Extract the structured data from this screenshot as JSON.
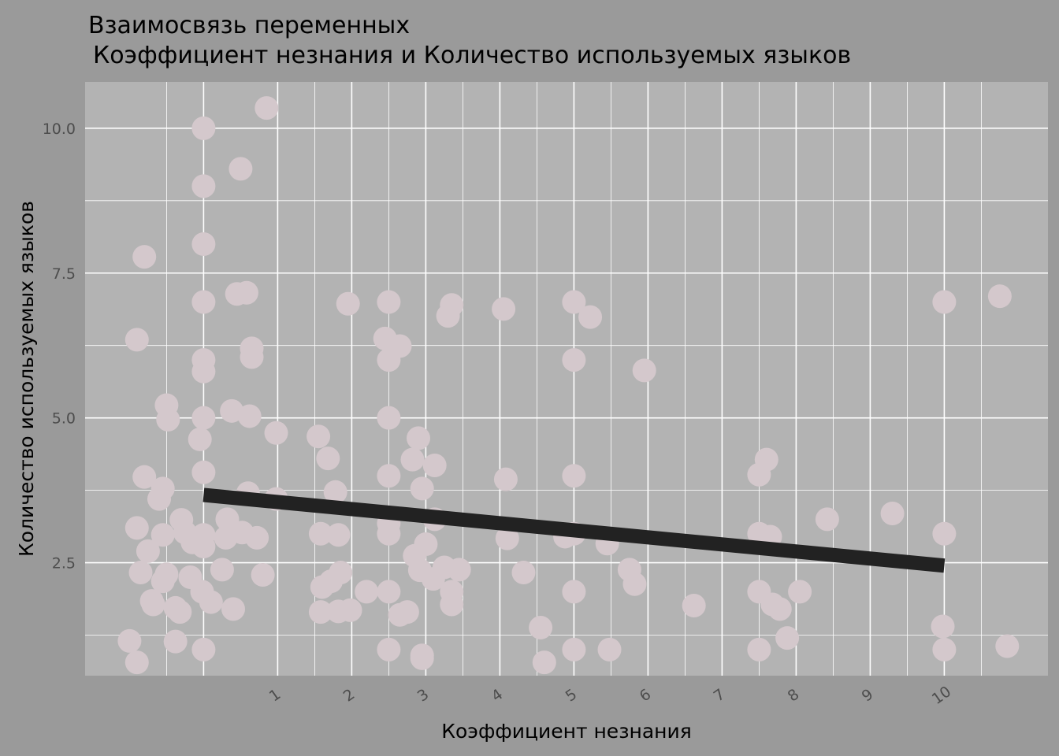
{
  "chart_data": {
    "type": "scatter",
    "title": "Взаимосвязь переменных",
    "subtitle": "Коэффициент незнания и Количество используемых языков",
    "xlabel": "Коэффициент незнания",
    "ylabel": "Количество используемых языков",
    "x_ticks": [
      1,
      2,
      3,
      4,
      5,
      6,
      7,
      8,
      9,
      10
    ],
    "x_tick_labels": [
      "1",
      "2",
      "3",
      "4",
      "5",
      "6",
      "7",
      "8",
      "9",
      "10"
    ],
    "y_ticks": [
      2.5,
      5.0,
      7.5,
      10.0
    ],
    "y_tick_labels": [
      "2.5",
      "5.0",
      "7.5",
      "10.0"
    ],
    "xlim": [
      -1.6,
      11.4
    ],
    "ylim": [
      0.55,
      10.8
    ],
    "grid": true,
    "legend": "none",
    "colors": {
      "background": "#9a9a9a",
      "panel": "#b3b3b3",
      "grid": "#ffffff",
      "point": "#d4c8cc",
      "trend_line": "#222222",
      "text": "#000000",
      "tick_text": "#4d4d4d"
    },
    "series": [
      {
        "type": "scatter",
        "points": [
          [
            -1.0,
            1.15
          ],
          [
            -0.9,
            0.78
          ],
          [
            -0.85,
            2.33
          ],
          [
            -0.9,
            3.1
          ],
          [
            -0.8,
            3.98
          ],
          [
            -0.75,
            2.7
          ],
          [
            -0.9,
            6.35
          ],
          [
            -0.8,
            7.78
          ],
          [
            -0.7,
            1.84
          ],
          [
            -0.68,
            1.78
          ],
          [
            -0.6,
            3.6
          ],
          [
            -0.55,
            3.78
          ],
          [
            -0.55,
            2.98
          ],
          [
            -0.5,
            2.3
          ],
          [
            -0.55,
            2.18
          ],
          [
            -0.5,
            5.22
          ],
          [
            -0.48,
            4.97
          ],
          [
            -0.38,
            1.72
          ],
          [
            -0.38,
            1.14
          ],
          [
            -0.3,
            3.24
          ],
          [
            -0.32,
            1.65
          ],
          [
            -0.25,
            3.02
          ],
          [
            -0.18,
            2.25
          ],
          [
            -0.15,
            2.85
          ],
          [
            -0.08,
            2.88
          ],
          [
            -0.02,
            2.0
          ],
          [
            0.0,
            10.0
          ],
          [
            0.0,
            9.0
          ],
          [
            0.0,
            8.0
          ],
          [
            0.0,
            7.0
          ],
          [
            0.0,
            6.0
          ],
          [
            0.0,
            5.8
          ],
          [
            0.0,
            5.0
          ],
          [
            -0.05,
            4.63
          ],
          [
            0.0,
            4.06
          ],
          [
            0.0,
            2.98
          ],
          [
            0.0,
            2.78
          ],
          [
            0.0,
            1.0
          ],
          [
            0.1,
            1.82
          ],
          [
            0.25,
            2.38
          ],
          [
            0.3,
            2.93
          ],
          [
            0.32,
            3.25
          ],
          [
            0.38,
            5.12
          ],
          [
            0.4,
            1.7
          ],
          [
            0.45,
            7.14
          ],
          [
            0.5,
            9.3
          ],
          [
            0.52,
            3.02
          ],
          [
            0.58,
            7.16
          ],
          [
            0.6,
            3.7
          ],
          [
            0.62,
            5.03
          ],
          [
            0.65,
            6.2
          ],
          [
            0.65,
            6.05
          ],
          [
            0.72,
            2.93
          ],
          [
            0.8,
            2.29
          ],
          [
            0.85,
            10.35
          ],
          [
            0.98,
            4.74
          ],
          [
            0.98,
            3.6
          ],
          [
            1.55,
            4.68
          ],
          [
            1.58,
            3.0
          ],
          [
            1.58,
            1.65
          ],
          [
            1.6,
            2.08
          ],
          [
            1.68,
            4.3
          ],
          [
            1.72,
            2.18
          ],
          [
            1.78,
            3.72
          ],
          [
            1.82,
            1.66
          ],
          [
            1.82,
            2.98
          ],
          [
            1.85,
            2.33
          ],
          [
            1.98,
            1.68
          ],
          [
            1.95,
            6.97
          ],
          [
            2.2,
            2.0
          ],
          [
            2.45,
            6.37
          ],
          [
            2.5,
            7.0
          ],
          [
            2.5,
            6.0
          ],
          [
            2.5,
            5.0
          ],
          [
            2.5,
            4.0
          ],
          [
            2.5,
            3.18
          ],
          [
            2.5,
            3.0
          ],
          [
            2.5,
            2.0
          ],
          [
            2.5,
            1.0
          ],
          [
            2.65,
            6.24
          ],
          [
            2.65,
            1.6
          ],
          [
            2.75,
            1.65
          ],
          [
            2.82,
            4.28
          ],
          [
            2.85,
            2.62
          ],
          [
            2.9,
            4.65
          ],
          [
            2.92,
            2.37
          ],
          [
            2.95,
            3.78
          ],
          [
            2.95,
            0.9
          ],
          [
            2.95,
            0.85
          ],
          [
            3.0,
            2.82
          ],
          [
            3.1,
            2.22
          ],
          [
            3.12,
            4.18
          ],
          [
            3.12,
            3.25
          ],
          [
            3.25,
            2.42
          ],
          [
            3.3,
            6.76
          ],
          [
            3.35,
            6.95
          ],
          [
            3.35,
            1.78
          ],
          [
            3.35,
            2.0
          ],
          [
            3.45,
            2.38
          ],
          [
            4.05,
            6.88
          ],
          [
            4.08,
            3.94
          ],
          [
            4.1,
            2.92
          ],
          [
            4.32,
            2.33
          ],
          [
            4.55,
            1.38
          ],
          [
            4.6,
            0.78
          ],
          [
            4.88,
            2.95
          ],
          [
            5.0,
            7.0
          ],
          [
            5.0,
            6.0
          ],
          [
            5.0,
            4.0
          ],
          [
            5.0,
            3.0
          ],
          [
            5.0,
            2.0
          ],
          [
            5.0,
            1.0
          ],
          [
            5.22,
            6.74
          ],
          [
            5.45,
            2.83
          ],
          [
            5.48,
            1.0
          ],
          [
            5.75,
            2.38
          ],
          [
            5.82,
            2.13
          ],
          [
            5.95,
            5.82
          ],
          [
            6.62,
            1.76
          ],
          [
            7.5,
            4.02
          ],
          [
            7.5,
            3.0
          ],
          [
            7.5,
            2.0
          ],
          [
            7.5,
            1.0
          ],
          [
            7.6,
            4.28
          ],
          [
            7.65,
            2.95
          ],
          [
            7.68,
            1.78
          ],
          [
            7.78,
            1.7
          ],
          [
            7.88,
            1.2
          ],
          [
            8.05,
            2.0
          ],
          [
            8.42,
            3.25
          ],
          [
            9.3,
            3.35
          ],
          [
            9.98,
            1.4
          ],
          [
            10.0,
            7.0
          ],
          [
            10.0,
            3.0
          ],
          [
            10.0,
            1.0
          ],
          [
            10.75,
            7.1
          ],
          [
            10.85,
            1.06
          ]
        ]
      },
      {
        "type": "line",
        "points": [
          [
            0.0,
            3.67
          ],
          [
            10.0,
            2.45
          ]
        ]
      }
    ]
  }
}
